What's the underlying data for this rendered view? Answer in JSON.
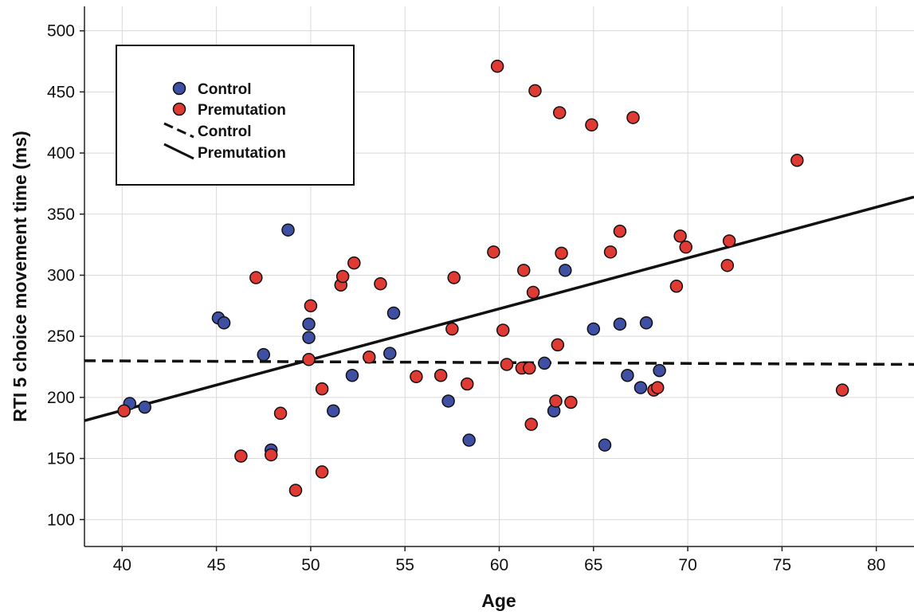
{
  "chart_data": {
    "type": "scatter",
    "xlabel": "Age",
    "ylabel": "RTI 5 choice movement time (ms)",
    "xlim": [
      38,
      82
    ],
    "ylim": [
      78,
      520
    ],
    "xticks": [
      40,
      45,
      50,
      55,
      60,
      65,
      70,
      75,
      80
    ],
    "yticks": [
      100,
      150,
      200,
      250,
      300,
      350,
      400,
      450,
      500
    ],
    "grid": true,
    "legend": {
      "position": "top-left",
      "items": [
        {
          "label": "Control",
          "kind": "marker",
          "color": "#3f4fa3"
        },
        {
          "label": "Premutation",
          "kind": "marker",
          "color": "#e03a35"
        },
        {
          "label": "Control",
          "kind": "dashed-line"
        },
        {
          "label": "Premutation",
          "kind": "solid-line"
        }
      ]
    },
    "series": [
      {
        "name": "Control",
        "color": "#3f4fa3",
        "points": [
          [
            40.4,
            195
          ],
          [
            41.2,
            192
          ],
          [
            45.1,
            265
          ],
          [
            45.4,
            261
          ],
          [
            47.5,
            235
          ],
          [
            47.9,
            157
          ],
          [
            48.8,
            337
          ],
          [
            49.9,
            260
          ],
          [
            49.9,
            249
          ],
          [
            51.2,
            189
          ],
          [
            52.2,
            218
          ],
          [
            54.2,
            236
          ],
          [
            54.4,
            269
          ],
          [
            57.3,
            197
          ],
          [
            58.4,
            165
          ],
          [
            62.4,
            228
          ],
          [
            62.9,
            189
          ],
          [
            63.5,
            304
          ],
          [
            65.0,
            256
          ],
          [
            65.6,
            161
          ],
          [
            66.4,
            260
          ],
          [
            66.8,
            218
          ],
          [
            67.5,
            208
          ],
          [
            67.8,
            261
          ],
          [
            68.5,
            222
          ]
        ]
      },
      {
        "name": "Premutation",
        "color": "#e03a35",
        "points": [
          [
            40.1,
            189
          ],
          [
            46.3,
            152
          ],
          [
            47.1,
            298
          ],
          [
            47.9,
            153
          ],
          [
            48.4,
            187
          ],
          [
            49.2,
            124
          ],
          [
            50.0,
            275
          ],
          [
            49.9,
            231
          ],
          [
            50.6,
            207
          ],
          [
            50.6,
            139
          ],
          [
            51.6,
            292
          ],
          [
            51.7,
            299
          ],
          [
            52.3,
            310
          ],
          [
            53.1,
            233
          ],
          [
            53.7,
            293
          ],
          [
            55.6,
            217
          ],
          [
            56.9,
            218
          ],
          [
            57.5,
            256
          ],
          [
            57.6,
            298
          ],
          [
            58.3,
            211
          ],
          [
            59.7,
            319
          ],
          [
            59.9,
            471
          ],
          [
            60.2,
            255
          ],
          [
            60.4,
            227
          ],
          [
            61.2,
            224
          ],
          [
            61.3,
            304
          ],
          [
            61.6,
            224
          ],
          [
            61.7,
            178
          ],
          [
            61.8,
            286
          ],
          [
            61.9,
            451
          ],
          [
            63.0,
            197
          ],
          [
            63.1,
            243
          ],
          [
            63.2,
            433
          ],
          [
            63.3,
            318
          ],
          [
            63.8,
            196
          ],
          [
            64.9,
            423
          ],
          [
            65.9,
            319
          ],
          [
            66.4,
            336
          ],
          [
            67.1,
            429
          ],
          [
            68.2,
            206
          ],
          [
            68.4,
            208
          ],
          [
            69.4,
            291
          ],
          [
            69.6,
            332
          ],
          [
            69.9,
            323
          ],
          [
            72.1,
            308
          ],
          [
            72.2,
            328
          ],
          [
            75.8,
            394
          ],
          [
            78.2,
            206
          ]
        ]
      }
    ],
    "fit_lines": [
      {
        "name": "Control",
        "style": "dashed",
        "x": [
          38,
          82
        ],
        "y": [
          230,
          227
        ]
      },
      {
        "name": "Premutation",
        "style": "solid",
        "x": [
          38,
          82
        ],
        "y": [
          181,
          364
        ]
      }
    ]
  }
}
